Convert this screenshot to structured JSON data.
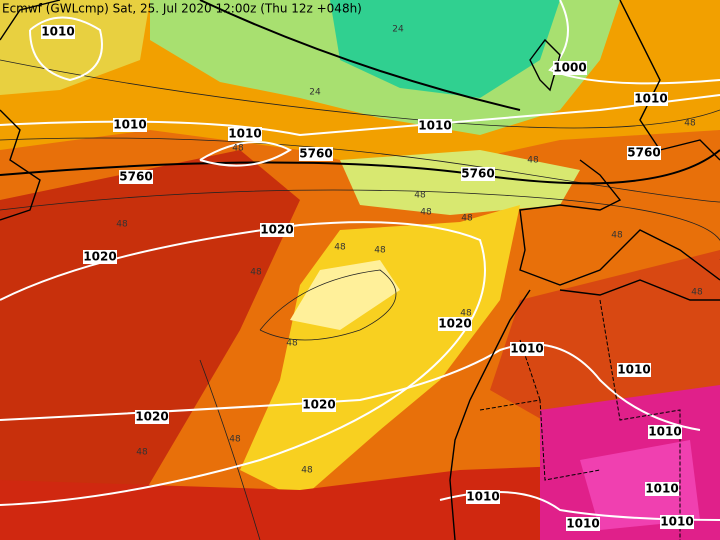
{
  "header": {
    "title": "Ecmwf (GWLcmp) Sat, 25. Jul 2020 12:00z (Thu 12z +048h)"
  },
  "map": {
    "pressure_labels": [
      "1010",
      "1000",
      "1010",
      "1010",
      "1010",
      "1010",
      "1020",
      "1020",
      "1020",
      "1010",
      "1010",
      "1020",
      "1020",
      "1010",
      "1010",
      "1010",
      "1010",
      "1010"
    ],
    "height_labels": [
      "5760",
      "5760",
      "5760",
      "5760"
    ],
    "thickness_labels": [
      "24",
      "24",
      "48",
      "48",
      "48",
      "48",
      "48",
      "48",
      "48",
      "48",
      "48",
      "48",
      "48",
      "48",
      "48",
      "48",
      "48",
      "48",
      "48"
    ]
  }
}
